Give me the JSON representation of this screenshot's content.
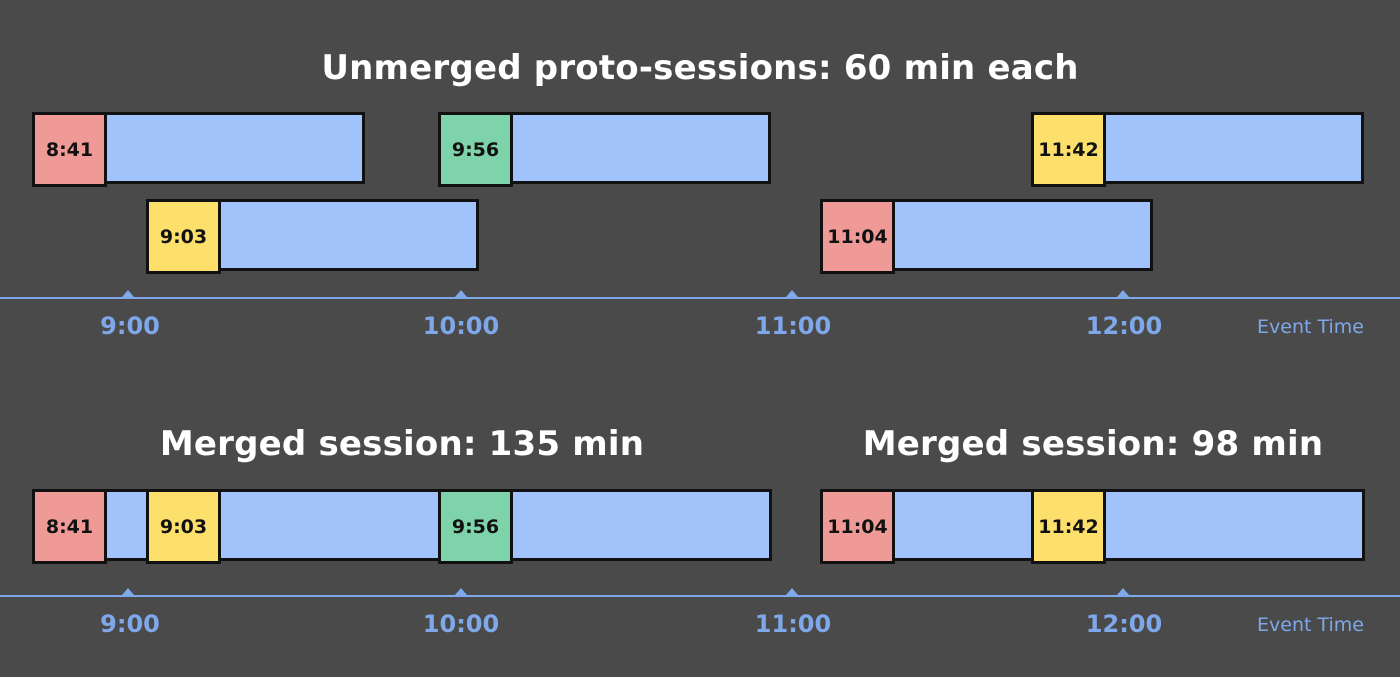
{
  "colors": {
    "background": "#4a4a4a",
    "session_bar": "#a1c2fa",
    "axis": "#7fa8ea",
    "red": "#ef9a97",
    "yellow": "#fde06b",
    "green": "#7ed3aa"
  },
  "top": {
    "title": "Unmerged proto-sessions: 60 min each",
    "axis": {
      "ticks": [
        "9:00",
        "10:00",
        "11:00",
        "12:00"
      ],
      "label": "Event Time"
    },
    "sessions": [
      {
        "event": "8:41",
        "color": "red",
        "duration_min": 60
      },
      {
        "event": "9:03",
        "color": "yellow",
        "duration_min": 60
      },
      {
        "event": "9:56",
        "color": "green",
        "duration_min": 60
      },
      {
        "event": "11:04",
        "color": "red",
        "duration_min": 60
      },
      {
        "event": "11:42",
        "color": "yellow",
        "duration_min": 60
      }
    ]
  },
  "bottom": {
    "titles": [
      "Merged session: 135 min",
      "Merged session: 98 min"
    ],
    "axis": {
      "ticks": [
        "9:00",
        "10:00",
        "11:00",
        "12:00"
      ],
      "label": "Event Time"
    },
    "sessions": [
      {
        "events": [
          {
            "event": "8:41",
            "color": "red"
          },
          {
            "event": "9:03",
            "color": "yellow"
          },
          {
            "event": "9:56",
            "color": "green"
          }
        ],
        "duration_min": 135
      },
      {
        "events": [
          {
            "event": "11:04",
            "color": "red"
          },
          {
            "event": "11:42",
            "color": "yellow"
          }
        ],
        "duration_min": 98
      }
    ]
  }
}
